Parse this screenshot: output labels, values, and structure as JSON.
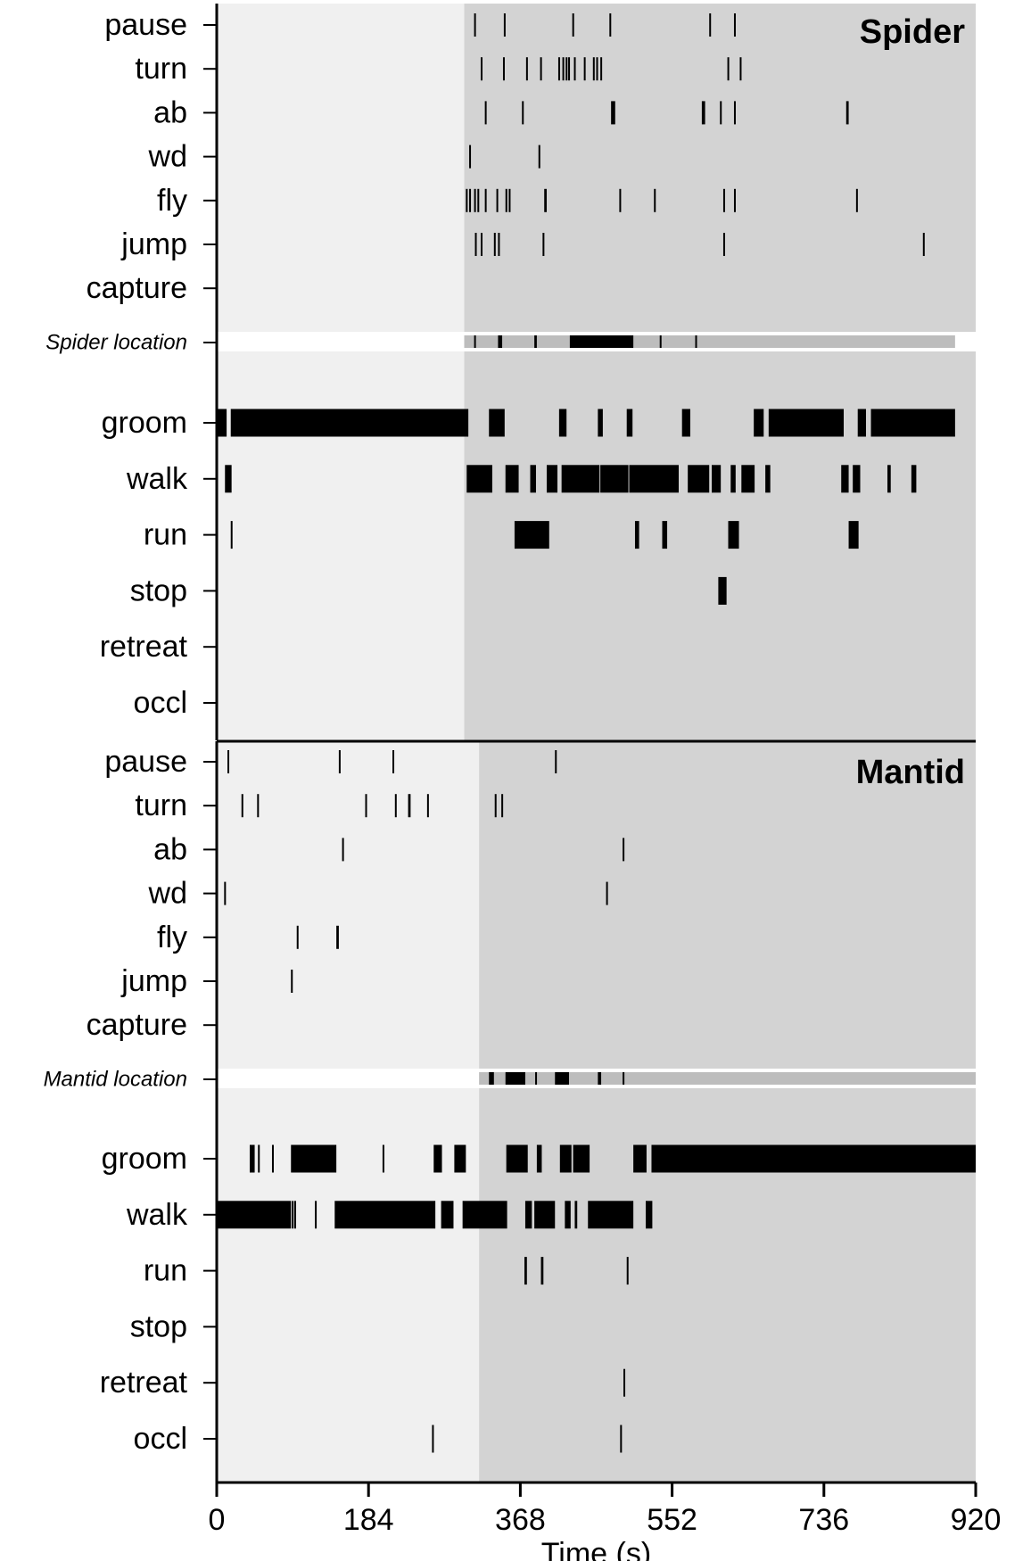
{
  "chart_data": {
    "type": "event-raster",
    "x_axis": {
      "label": "Time (s)",
      "range": [
        0,
        920
      ],
      "ticks": [
        0,
        184,
        368,
        552,
        736,
        920
      ],
      "tick_labels": [
        "0",
        "184",
        "368",
        "552",
        "736",
        "920"
      ]
    },
    "colors": {
      "bar": "#000000",
      "pre_phase": "#f0f0f0",
      "post_phase": "#d3d3d3",
      "location_track": "#bdbdbd"
    },
    "panels": [
      {
        "id": "spider",
        "title": "Spider",
        "phase_change": 300,
        "location_label": "Spider location",
        "location_track": [
          300,
          895
        ],
        "location_events": [
          [
            312,
            314
          ],
          [
            341,
            346
          ],
          [
            385,
            388
          ],
          [
            428,
            505
          ],
          [
            537,
            539
          ],
          [
            580,
            582
          ]
        ],
        "upper_rows": [
          {
            "label": "pause",
            "events": [
              [
                312,
                313
              ],
              [
                348,
                349
              ],
              [
                431,
                432
              ],
              [
                476,
                477
              ],
              [
                597,
                598
              ],
              [
                627,
                628
              ]
            ]
          },
          {
            "label": "turn",
            "events": [
              [
                320,
                321
              ],
              [
                347,
                348
              ],
              [
                375,
                376
              ],
              [
                392,
                393
              ],
              [
                414,
                415
              ],
              [
                419,
                420
              ],
              [
                423,
                424
              ],
              [
                426,
                427
              ],
              [
                433,
                434
              ],
              [
                445,
                446
              ],
              [
                456,
                457
              ],
              [
                460,
                461
              ],
              [
                465,
                466
              ],
              [
                619,
                620
              ],
              [
                634,
                635
              ]
            ]
          },
          {
            "label": "ab",
            "events": [
              [
                325,
                326
              ],
              [
                370,
                371
              ],
              [
                478,
                483
              ],
              [
                588,
                592
              ],
              [
                610,
                611
              ],
              [
                627,
                628
              ],
              [
                763,
                766
              ]
            ]
          },
          {
            "label": "wd",
            "events": [
              [
                306,
                307
              ],
              [
                390,
                391
              ]
            ]
          },
          {
            "label": "fly",
            "events": [
              [
                302,
                303
              ],
              [
                306,
                307
              ],
              [
                312,
                313
              ],
              [
                316,
                318
              ],
              [
                325,
                326
              ],
              [
                339,
                340
              ],
              [
                350,
                351
              ],
              [
                354,
                355
              ],
              [
                397,
                400
              ],
              [
                488,
                489
              ],
              [
                530,
                531
              ],
              [
                614,
                615
              ],
              [
                627,
                628
              ],
              [
                775,
                776
              ]
            ]
          },
          {
            "label": "jump",
            "events": [
              [
                313,
                314
              ],
              [
                320,
                321
              ],
              [
                336,
                337
              ],
              [
                341,
                342
              ],
              [
                395,
                396
              ],
              [
                614,
                615
              ],
              [
                856,
                857
              ]
            ]
          },
          {
            "label": "capture",
            "events": []
          }
        ],
        "lower_rows": [
          {
            "label": "groom",
            "events": [
              [
                0,
                12
              ],
              [
                17,
                305
              ],
              [
                330,
                349
              ],
              [
                415,
                424
              ],
              [
                462,
                468
              ],
              [
                497,
                504
              ],
              [
                564,
                574
              ],
              [
                651,
                663
              ],
              [
                669,
                760
              ],
              [
                777,
                787
              ],
              [
                793,
                895
              ]
            ]
          },
          {
            "label": "walk",
            "events": [
              [
                10,
                18
              ],
              [
                303,
                334
              ],
              [
                350,
                366
              ],
              [
                380,
                387
              ],
              [
                400,
                413
              ],
              [
                418,
                464
              ],
              [
                465,
                499
              ],
              [
                500,
                560
              ],
              [
                571,
                597
              ],
              [
                600,
                611
              ],
              [
                623,
                629
              ],
              [
                636,
                652
              ],
              [
                665,
                671
              ],
              [
                757,
                766
              ],
              [
                771,
                780
              ],
              [
                813,
                817
              ],
              [
                842,
                848
              ]
            ]
          },
          {
            "label": "run",
            "events": [
              [
                17,
                19
              ],
              [
                361,
                380
              ],
              [
                380,
                403
              ],
              [
                507,
                512
              ],
              [
                540,
                546
              ],
              [
                620,
                633
              ],
              [
                766,
                778
              ]
            ]
          },
          {
            "label": "stop",
            "events": [
              [
                608,
                618
              ]
            ]
          },
          {
            "label": "retreat",
            "events": []
          },
          {
            "label": "occl",
            "events": []
          }
        ]
      },
      {
        "id": "mantid",
        "title": "Mantid",
        "phase_change": 318,
        "location_label": "Mantid location",
        "location_track": [
          318,
          920
        ],
        "location_events": [
          [
            330,
            336
          ],
          [
            350,
            374
          ],
          [
            386,
            388
          ],
          [
            410,
            427
          ],
          [
            462,
            466
          ],
          [
            492,
            494
          ]
        ],
        "upper_rows": [
          {
            "label": "pause",
            "events": [
              [
                13,
                14
              ],
              [
                148,
                149
              ],
              [
                213,
                214
              ],
              [
                410,
                411
              ]
            ]
          },
          {
            "label": "turn",
            "events": [
              [
                30,
                31
              ],
              [
                49,
                50
              ],
              [
                180,
                181
              ],
              [
                216,
                217
              ],
              [
                232,
                235
              ],
              [
                255,
                256
              ],
              [
                337,
                338
              ],
              [
                345,
                346
              ]
            ]
          },
          {
            "label": "ab",
            "events": [
              [
                152,
                153
              ],
              [
                492,
                493
              ]
            ]
          },
          {
            "label": "wd",
            "events": [
              [
                9,
                10
              ],
              [
                472,
                473
              ]
            ]
          },
          {
            "label": "fly",
            "events": [
              [
                97,
                98
              ],
              [
                145,
                148
              ]
            ]
          },
          {
            "label": "jump",
            "events": [
              [
                90,
                91
              ]
            ]
          },
          {
            "label": "capture",
            "events": []
          }
        ],
        "lower_rows": [
          {
            "label": "groom",
            "events": [
              [
                40,
                46
              ],
              [
                50,
                52
              ],
              [
                67,
                69
              ],
              [
                90,
                145
              ],
              [
                201,
                203
              ],
              [
                263,
                273
              ],
              [
                288,
                302
              ],
              [
                351,
                377
              ],
              [
                388,
                394
              ],
              [
                416,
                430
              ],
              [
                432,
                452
              ],
              [
                505,
                521
              ],
              [
                527,
                920
              ]
            ]
          },
          {
            "label": "walk",
            "events": [
              [
                0,
                90
              ],
              [
                91,
                93
              ],
              [
                94,
                96
              ],
              [
                119,
                120
              ],
              [
                143,
                265
              ],
              [
                272,
                287
              ],
              [
                298,
                352
              ],
              [
                374,
                382
              ],
              [
                385,
                410
              ],
              [
                422,
                429
              ],
              [
                434,
                437
              ],
              [
                450,
                505
              ],
              [
                520,
                528
              ]
            ]
          },
          {
            "label": "run",
            "events": [
              [
                373,
                376
              ],
              [
                393,
                396
              ],
              [
                497,
                499
              ]
            ]
          },
          {
            "label": "stop",
            "events": []
          },
          {
            "label": "retreat",
            "events": [
              [
                493,
                495
              ]
            ]
          },
          {
            "label": "occl",
            "events": [
              [
                261,
                263
              ],
              [
                489,
                491
              ]
            ]
          }
        ]
      }
    ]
  }
}
